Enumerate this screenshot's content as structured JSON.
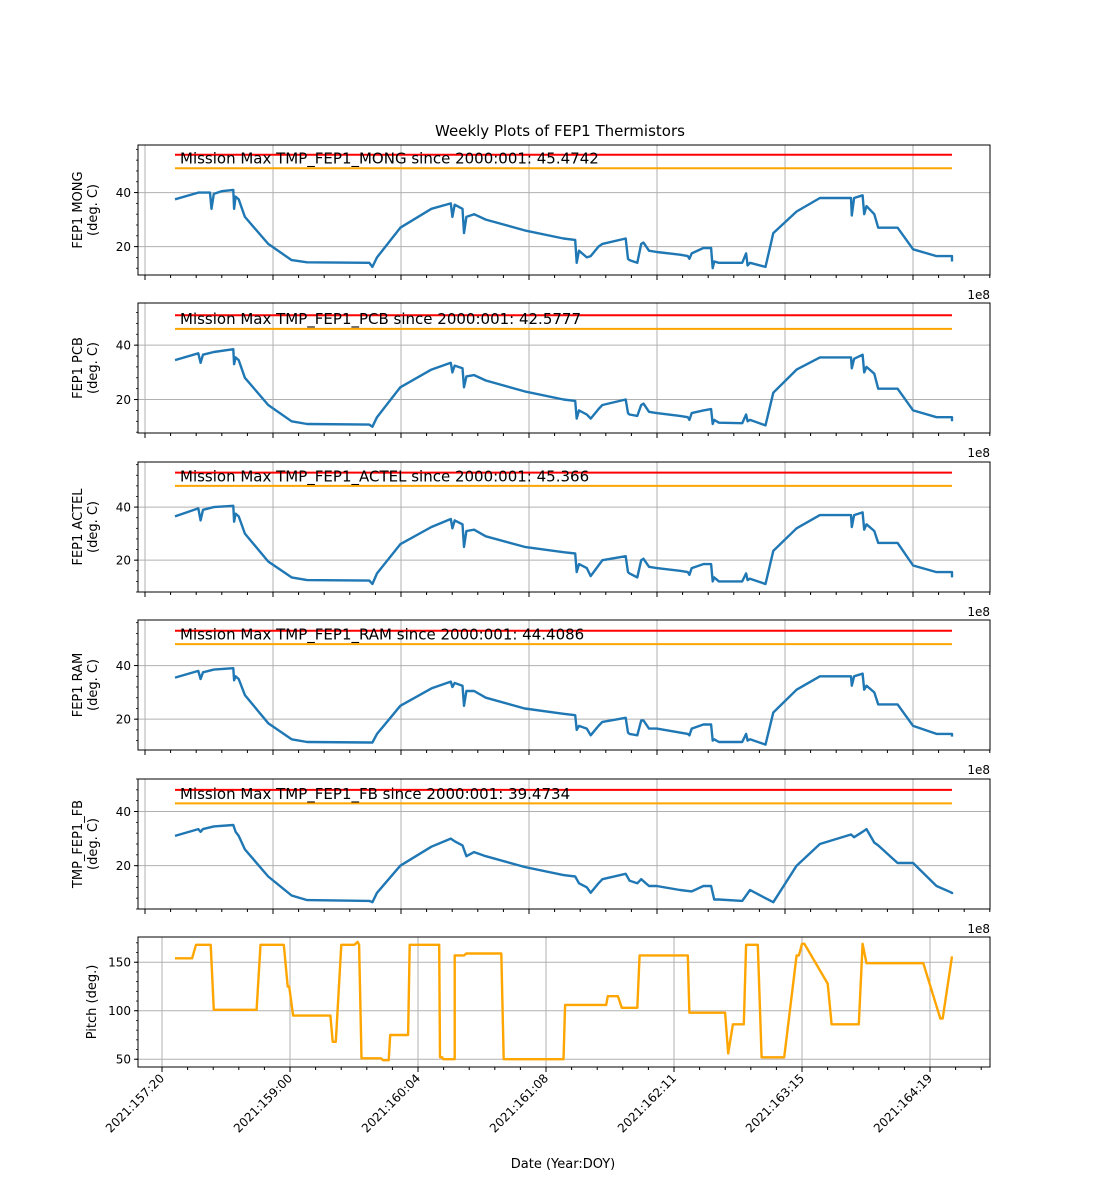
{
  "figure_title": "Weekly Plots of FEP1 Thermistors",
  "x_offset_label": "1e8",
  "x_axis_label": "Date (Year:DOY)",
  "colors": {
    "temperature_line": "#1f77b4",
    "red_limit": "#ff0000",
    "yellow_limit": "#ffa500",
    "pitch_line": "#ffa500",
    "grid": "#b0b0b0"
  },
  "chart_data": [
    {
      "type": "line",
      "title": "Weekly Plots of FEP1 Thermistors",
      "ylabel": "FEP1 MONG\n(deg. C)",
      "ylabel_lines": [
        "FEP1 MONG",
        "(deg. C)"
      ],
      "ylim": [
        9.5,
        57.6
      ],
      "yticks": [
        20,
        40
      ],
      "annotation": "Mission Max TMP_FEP1_MONG since 2000:001: 45.4742",
      "red_limit": 54,
      "yellow_limit": 49,
      "x": [
        0,
        0.03,
        0.045,
        0.047,
        0.05,
        0.06,
        0.075,
        0.076,
        0.078,
        0.082,
        0.09,
        0.12,
        0.15,
        0.17,
        0.25,
        0.254,
        0.26,
        0.29,
        0.33,
        0.355,
        0.357,
        0.36,
        0.37,
        0.372,
        0.375,
        0.385,
        0.4,
        0.45,
        0.5,
        0.515,
        0.517,
        0.52,
        0.53,
        0.535,
        0.545,
        0.55,
        0.58,
        0.583,
        0.585,
        0.595,
        0.6,
        0.603,
        0.61,
        0.62,
        0.65,
        0.66,
        0.662,
        0.665,
        0.68,
        0.69,
        0.692,
        0.694,
        0.7,
        0.73,
        0.735,
        0.737,
        0.74,
        0.76,
        0.77,
        0.8,
        0.83,
        0.87,
        0.871,
        0.874,
        0.885,
        0.887,
        0.89,
        0.9,
        0.905,
        0.93,
        0.95,
        0.98,
        1.0,
        1.0
      ],
      "y": [
        37.5,
        40,
        40,
        34,
        39.5,
        40.5,
        41,
        34,
        38.5,
        37.5,
        31,
        21,
        15,
        14.2,
        14,
        12.5,
        16,
        27,
        34,
        36,
        31,
        35.5,
        34,
        25,
        31,
        32,
        30,
        26,
        23,
        22.5,
        14,
        18.5,
        16,
        16.5,
        20,
        21,
        23,
        15.5,
        15,
        14,
        21,
        21.5,
        18.5,
        18,
        17,
        16.5,
        15.5,
        17.5,
        19.5,
        19.5,
        12,
        14.5,
        14,
        14,
        17.5,
        13,
        14,
        12.5,
        25,
        33,
        38,
        38,
        31.5,
        38,
        39,
        32,
        35,
        32,
        27,
        27,
        19,
        16.5,
        16.5,
        14.5
      ]
    },
    {
      "type": "line",
      "ylabel": "FEP1 PCB\n(deg. C)",
      "ylabel_lines": [
        "FEP1 PCB",
        "(deg. C)"
      ],
      "ylim": [
        7.7,
        55.5
      ],
      "yticks": [
        20,
        40
      ],
      "annotation": "Mission Max TMP_FEP1_PCB since 2000:001: 42.5777",
      "red_limit": 51,
      "yellow_limit": 46,
      "x": [
        0,
        0.03,
        0.033,
        0.036,
        0.05,
        0.075,
        0.076,
        0.078,
        0.082,
        0.09,
        0.12,
        0.15,
        0.17,
        0.25,
        0.254,
        0.26,
        0.29,
        0.33,
        0.355,
        0.357,
        0.36,
        0.37,
        0.372,
        0.375,
        0.385,
        0.4,
        0.45,
        0.5,
        0.515,
        0.517,
        0.52,
        0.53,
        0.535,
        0.545,
        0.55,
        0.58,
        0.583,
        0.585,
        0.595,
        0.6,
        0.603,
        0.61,
        0.62,
        0.65,
        0.66,
        0.662,
        0.665,
        0.68,
        0.69,
        0.692,
        0.694,
        0.7,
        0.73,
        0.735,
        0.737,
        0.74,
        0.76,
        0.77,
        0.8,
        0.83,
        0.87,
        0.871,
        0.874,
        0.885,
        0.887,
        0.89,
        0.9,
        0.905,
        0.93,
        0.95,
        0.98,
        1.0,
        1.0
      ],
      "y": [
        34.5,
        37,
        33.5,
        36.5,
        37.5,
        38.5,
        33,
        35.5,
        34.5,
        28,
        18,
        12,
        11,
        10.8,
        10,
        13.5,
        24.5,
        31,
        33.5,
        30,
        32.5,
        31.5,
        24.5,
        28.5,
        29,
        27,
        23,
        20,
        19.5,
        13,
        16,
        14.5,
        13,
        16.5,
        18,
        20,
        15,
        14.5,
        14,
        18,
        18.5,
        15.5,
        15,
        14,
        13.5,
        12.5,
        15,
        16,
        16.5,
        11,
        12.5,
        11.5,
        11.3,
        14.5,
        12,
        12.5,
        10.5,
        22.5,
        31,
        35.5,
        35.5,
        31.5,
        35,
        36.5,
        30,
        32,
        29.5,
        24,
        24,
        16,
        13.5,
        13.5,
        12
      ]
    },
    {
      "type": "line",
      "ylabel": "FEP1 ACTEL\n(deg. C)",
      "ylabel_lines": [
        "FEP1 ACTEL",
        "(deg. C)"
      ],
      "ylim": [
        8.0,
        57.0
      ],
      "yticks": [
        20,
        40
      ],
      "annotation": "Mission Max TMP_FEP1_ACTEL since 2000:001: 45.366",
      "red_limit": 53,
      "yellow_limit": 48,
      "x": [
        0,
        0.03,
        0.033,
        0.036,
        0.05,
        0.075,
        0.076,
        0.078,
        0.082,
        0.09,
        0.12,
        0.15,
        0.17,
        0.25,
        0.254,
        0.26,
        0.29,
        0.33,
        0.355,
        0.357,
        0.36,
        0.37,
        0.372,
        0.375,
        0.385,
        0.4,
        0.45,
        0.5,
        0.515,
        0.517,
        0.52,
        0.53,
        0.535,
        0.545,
        0.55,
        0.58,
        0.583,
        0.585,
        0.595,
        0.6,
        0.603,
        0.61,
        0.62,
        0.65,
        0.66,
        0.662,
        0.665,
        0.68,
        0.69,
        0.692,
        0.694,
        0.7,
        0.73,
        0.735,
        0.737,
        0.74,
        0.76,
        0.77,
        0.8,
        0.83,
        0.87,
        0.871,
        0.874,
        0.885,
        0.887,
        0.89,
        0.9,
        0.905,
        0.93,
        0.95,
        0.98,
        1.0,
        1.0
      ],
      "y": [
        36.5,
        39.5,
        35,
        39,
        40,
        40.5,
        34.5,
        37.5,
        36.5,
        30,
        19.5,
        13.5,
        12.5,
        12.3,
        11,
        15,
        26,
        32.5,
        35.5,
        32,
        35,
        33.5,
        25,
        31,
        31.5,
        29,
        25,
        23,
        22.5,
        15.5,
        18.5,
        17,
        14,
        18,
        20,
        21.5,
        15.5,
        15,
        13.5,
        20,
        20.5,
        17.5,
        17,
        16,
        15.5,
        14.5,
        17,
        18.5,
        18.5,
        12,
        13.5,
        12,
        12,
        15,
        12.5,
        13,
        11,
        23.5,
        32,
        37,
        37,
        32.5,
        37,
        38,
        31.5,
        33.5,
        31,
        26.5,
        26.5,
        18,
        15.5,
        15.5,
        13.5
      ]
    },
    {
      "type": "line",
      "ylabel": "FEP1 RAM\n(deg. C)",
      "ylabel_lines": [
        "FEP1 RAM",
        "(deg. C)"
      ],
      "ylim": [
        8.5,
        57.0
      ],
      "yticks": [
        20,
        40
      ],
      "annotation": "Mission Max TMP_FEP1_RAM since 2000:001: 44.4086",
      "red_limit": 53,
      "yellow_limit": 48,
      "x": [
        0,
        0.03,
        0.033,
        0.036,
        0.05,
        0.075,
        0.076,
        0.078,
        0.082,
        0.09,
        0.12,
        0.15,
        0.17,
        0.25,
        0.254,
        0.26,
        0.29,
        0.33,
        0.355,
        0.357,
        0.36,
        0.37,
        0.372,
        0.375,
        0.385,
        0.4,
        0.45,
        0.5,
        0.515,
        0.517,
        0.52,
        0.53,
        0.535,
        0.545,
        0.55,
        0.58,
        0.583,
        0.585,
        0.595,
        0.6,
        0.603,
        0.61,
        0.62,
        0.65,
        0.66,
        0.662,
        0.665,
        0.68,
        0.69,
        0.692,
        0.694,
        0.7,
        0.73,
        0.735,
        0.737,
        0.74,
        0.76,
        0.77,
        0.8,
        0.83,
        0.87,
        0.871,
        0.874,
        0.885,
        0.887,
        0.89,
        0.9,
        0.905,
        0.93,
        0.95,
        0.98,
        1.0,
        1.0
      ],
      "y": [
        35.5,
        38,
        35,
        37.5,
        38.5,
        39,
        34.5,
        36,
        35,
        29,
        18.5,
        12.5,
        11.5,
        11.3,
        11.3,
        14.5,
        25,
        31.5,
        34,
        32,
        33.5,
        32.5,
        25,
        30.5,
        30.5,
        28,
        24,
        22,
        21.5,
        16,
        17.5,
        16.5,
        14,
        17.5,
        19,
        20.5,
        15,
        14.5,
        14,
        19.5,
        19.5,
        16.5,
        16.5,
        15,
        14.5,
        14,
        16.5,
        18,
        18,
        12,
        12.5,
        11.5,
        11.5,
        14.5,
        12,
        12.5,
        10.5,
        22.5,
        31,
        36,
        36,
        32.5,
        36,
        37,
        31,
        32.5,
        30,
        25.5,
        25.5,
        17.5,
        14.5,
        14.5,
        13.5
      ]
    },
    {
      "type": "line",
      "ylabel": "TMP_FEP1_FB\n(deg. C)",
      "ylabel_lines": [
        "TMP_FEP1_FB",
        "(deg. C)"
      ],
      "ylim": [
        4.0,
        52.0
      ],
      "yticks": [
        20,
        40
      ],
      "annotation": "Mission Max TMP_FEP1_FB since 2000:001: 39.4734",
      "red_limit": 48,
      "yellow_limit": 43,
      "x": [
        0,
        0.03,
        0.033,
        0.036,
        0.05,
        0.075,
        0.078,
        0.082,
        0.09,
        0.12,
        0.15,
        0.17,
        0.25,
        0.254,
        0.26,
        0.29,
        0.33,
        0.355,
        0.36,
        0.37,
        0.375,
        0.385,
        0.4,
        0.45,
        0.5,
        0.515,
        0.52,
        0.53,
        0.535,
        0.545,
        0.55,
        0.58,
        0.585,
        0.595,
        0.6,
        0.61,
        0.62,
        0.65,
        0.665,
        0.68,
        0.69,
        0.694,
        0.7,
        0.73,
        0.74,
        0.76,
        0.77,
        0.8,
        0.83,
        0.87,
        0.874,
        0.885,
        0.89,
        0.9,
        0.905,
        0.93,
        0.95,
        0.98,
        1.0,
        1.0
      ],
      "y": [
        31,
        33.5,
        32.5,
        33.5,
        34.5,
        35,
        32.5,
        31,
        26,
        16,
        9,
        7.3,
        7,
        6.5,
        10,
        20,
        27,
        30,
        29,
        27.5,
        23.5,
        25,
        23.5,
        19.5,
        16.5,
        16,
        13.5,
        12,
        10,
        13.5,
        15,
        17,
        14.5,
        13.5,
        15,
        12.5,
        12.5,
        11,
        10.5,
        12.5,
        12.5,
        7.5,
        7.5,
        7,
        11,
        8,
        6.5,
        20,
        28,
        31.5,
        30.5,
        32.5,
        33.5,
        28.5,
        27.5,
        21,
        21,
        12.5,
        10,
        9.5
      ]
    },
    {
      "type": "line",
      "ylabel": "Pitch (deg.)",
      "ylabel_lines": [
        "Pitch (deg.)"
      ],
      "ylim": [
        42,
        176
      ],
      "yticks": [
        50,
        100,
        150
      ],
      "xtick_labels": [
        "2021:157:20",
        "2021:159:00",
        "2021:160:04",
        "2021:161:08",
        "2021:162:11",
        "2021:163:15",
        "2021:164:19"
      ],
      "xlabel": "Date (Year:DOY)",
      "x": [
        0,
        0.022,
        0.027,
        0.046,
        0.05,
        0.105,
        0.11,
        0.14,
        0.145,
        0.147,
        0.152,
        0.158,
        0.2,
        0.203,
        0.207,
        0.214,
        0.231,
        0.235,
        0.237,
        0.24,
        0.265,
        0.268,
        0.275,
        0.277,
        0.295,
        0.3,
        0.302,
        0.34,
        0.341,
        0.344,
        0.345,
        0.36,
        0.36,
        0.363,
        0.365,
        0.37,
        0.372,
        0.375,
        0.38,
        0.42,
        0.423,
        0.425,
        0.44,
        0.45,
        0.5,
        0.502,
        0.505,
        0.53,
        0.555,
        0.557,
        0.57,
        0.575,
        0.595,
        0.598,
        0.625,
        0.66,
        0.662,
        0.695,
        0.7,
        0.701,
        0.708,
        0.712,
        0.718,
        0.725,
        0.728,
        0.732,
        0.735,
        0.75,
        0.755,
        0.78,
        0.784,
        0.8,
        0.803,
        0.807,
        0.81,
        0.84,
        0.845,
        0.852,
        0.858,
        0.875,
        0.88,
        0.885,
        0.89,
        0.905,
        0.91,
        0.96,
        0.963,
        0.985,
        0.988,
        1.0
      ],
      "y": [
        154,
        154,
        168,
        168,
        101,
        101,
        168,
        168,
        125,
        125,
        95,
        95,
        95,
        68,
        68,
        168,
        168,
        171,
        168,
        51,
        51,
        49,
        49,
        75,
        75,
        75,
        168,
        168,
        52,
        52,
        50,
        50,
        157,
        157,
        157,
        157,
        157,
        159,
        159,
        159,
        50,
        50,
        50,
        50,
        50,
        106,
        106,
        106,
        106,
        115,
        115,
        103,
        103,
        157,
        157,
        157,
        98,
        98,
        98,
        98,
        98,
        56,
        86,
        86,
        86,
        86,
        168,
        168,
        52,
        52,
        52,
        157,
        157,
        169,
        169,
        128,
        86,
        86,
        86,
        86,
        86,
        169,
        149,
        149,
        149,
        149,
        149,
        92,
        92,
        156
      ]
    }
  ]
}
